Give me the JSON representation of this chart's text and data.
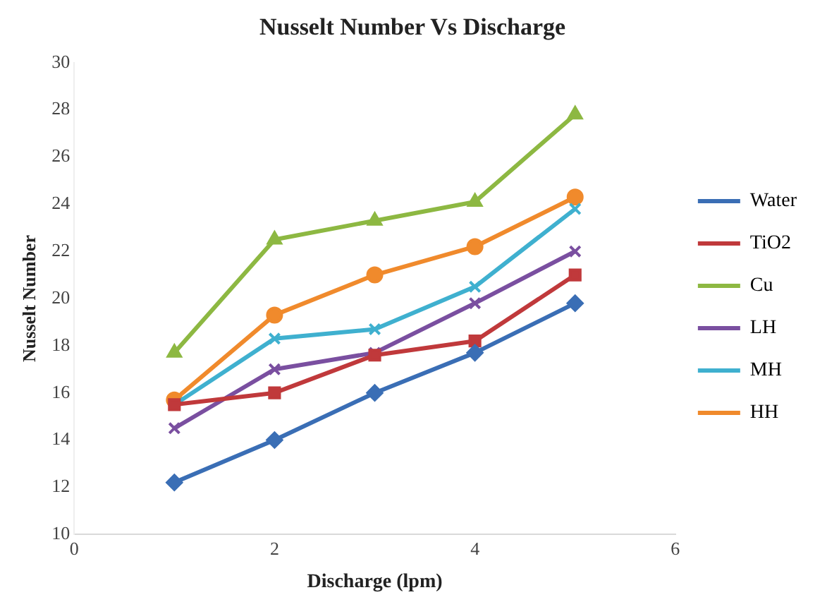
{
  "chart_data": {
    "type": "line",
    "title": "Nusselt Number Vs Discharge",
    "xlabel": "Discharge (lpm)",
    "ylabel": "Nusselt Number",
    "x": [
      1,
      2,
      3,
      4,
      5
    ],
    "xlim": [
      0,
      6
    ],
    "xticks": [
      0,
      2,
      4,
      6
    ],
    "ylim": [
      10,
      30
    ],
    "yticks": [
      10,
      12,
      14,
      16,
      18,
      20,
      22,
      24,
      26,
      28,
      30
    ],
    "grid": false,
    "legend": "right",
    "line_style": "solid",
    "series": [
      {
        "name": "Water",
        "color": "#3a6eb5",
        "marker": "diamond",
        "values": [
          12.2,
          14,
          16,
          17.7,
          19.8
        ]
      },
      {
        "name": "TiO2",
        "color": "#c0393b",
        "marker": "square",
        "values": [
          15.5,
          16,
          17.6,
          18.2,
          21
        ]
      },
      {
        "name": "Cu",
        "color": "#8db842",
        "marker": "triangle",
        "values": [
          17.7,
          22.5,
          23.3,
          24.1,
          27.8
        ]
      },
      {
        "name": "LH",
        "color": "#7a4fa0",
        "marker": "cross",
        "values": [
          14.5,
          17,
          17.7,
          19.8,
          22
        ]
      },
      {
        "name": "MH",
        "color": "#3fb0cf",
        "marker": "cross",
        "values": [
          15.5,
          18.3,
          18.7,
          20.5,
          23.8
        ]
      },
      {
        "name": "HH",
        "color": "#f08a2c",
        "marker": "circle",
        "values": [
          15.7,
          19.3,
          21,
          22.2,
          24.3
        ]
      }
    ]
  }
}
